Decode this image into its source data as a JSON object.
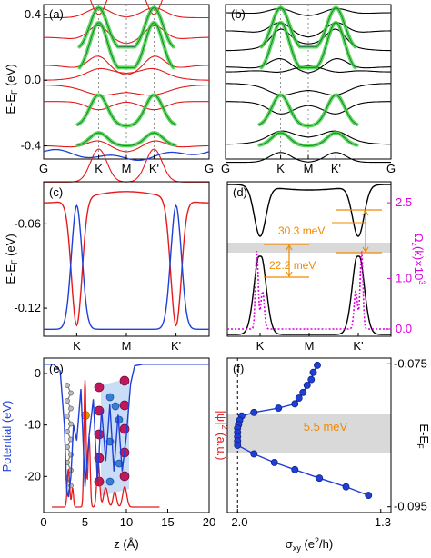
{
  "colors": {
    "red": "#e41a1c",
    "blue": "#1f3fd6",
    "green": "#3cd23c",
    "black": "#000000",
    "magenta": "#e000e0",
    "orange": "#f08a00",
    "gray_band": "#d9d9d9",
    "atom_purple": "#c0185c",
    "atom_blue": "#3a7dd8",
    "atom_gray": "#8c8c8c",
    "sheet_blue": "#9cc3ee"
  },
  "chart_data": [
    {
      "panel": "(a)",
      "type": "line",
      "title": "",
      "ylabel": "E-E_F (eV)",
      "xlabel": "",
      "xticks": [
        {
          "x": 0.0,
          "label": "G"
        },
        {
          "x": 0.333,
          "label": "K"
        },
        {
          "x": 0.5,
          "label": "M"
        },
        {
          "x": 0.667,
          "label": "K'"
        },
        {
          "x": 1.0,
          "label": "G"
        }
      ],
      "ylim": [
        -0.48,
        0.46
      ],
      "yticks": [
        "0.4",
        "0.0",
        "-0.4"
      ],
      "yticks_values": [
        0.4,
        0.0,
        -0.4
      ],
      "series": [
        {
          "color": "red",
          "kind": "band_set",
          "description_values": [
            0.42,
            0.31,
            0.18,
            0.08,
            -0.07,
            -0.16,
            -0.28,
            -0.37
          ]
        },
        {
          "color": "green",
          "kind": "projected_bands",
          "valley_minima": [
            0.18,
            0.18
          ],
          "valley_maxima": [
            -0.28,
            -0.28
          ]
        },
        {
          "color": "blue",
          "kind": "band",
          "values_at_ends": [
            -0.46,
            -0.46
          ]
        }
      ]
    },
    {
      "panel": "(b)",
      "type": "line",
      "title": "",
      "xticks": [
        {
          "x": 0.0,
          "label": "G"
        },
        {
          "x": 0.333,
          "label": "K"
        },
        {
          "x": 0.5,
          "label": "M"
        },
        {
          "x": 0.667,
          "label": "K'"
        },
        {
          "x": 1.0,
          "label": "G"
        }
      ],
      "ylim": [
        -0.48,
        0.46
      ],
      "series": [
        {
          "color": "black",
          "kind": "band_set"
        },
        {
          "color": "green",
          "kind": "projected_bands"
        }
      ]
    },
    {
      "panel": "(c)",
      "type": "line",
      "title": "",
      "ylabel": "E-E_F (eV)",
      "xticks": [
        {
          "x": 0.2,
          "label": "K"
        },
        {
          "x": 0.5,
          "label": "M"
        },
        {
          "x": 0.8,
          "label": "K'"
        }
      ],
      "yticks": [
        "-0.06",
        "-0.12"
      ],
      "yticks_values": [
        -0.06,
        -0.12
      ],
      "ylim": [
        -0.14,
        -0.03
      ],
      "series": [
        {
          "color": "red",
          "kind": "band"
        },
        {
          "color": "blue",
          "kind": "band"
        }
      ]
    },
    {
      "panel": "(d)",
      "type": "line",
      "title": "",
      "y2label": "Ω_z(k)×10^3",
      "xticks": [
        {
          "x": 0.2,
          "label": "K"
        },
        {
          "x": 0.5,
          "label": "M"
        },
        {
          "x": 0.8,
          "label": "K'"
        }
      ],
      "y2ticks": [
        "2.5",
        "1.0",
        "0.0"
      ],
      "y2ticks_values": [
        2.5,
        1.0,
        0.0
      ],
      "annotations": [
        "30.3 meV",
        "22.2 meV"
      ],
      "series": [
        {
          "color": "black",
          "kind": "band"
        },
        {
          "color": "magenta",
          "kind": "berry_curvature",
          "style": "dotted"
        }
      ]
    },
    {
      "panel": "(e)",
      "type": "line",
      "title": "",
      "xlabel": "z (Å)",
      "ylabel": "Potential (eV)",
      "y2label": "|ψ|^2 (a.u.)",
      "xlim": [
        0,
        20
      ],
      "xticks": [
        "0",
        "5",
        "10",
        "15",
        "20"
      ],
      "xticks_values": [
        0,
        5,
        10,
        15,
        20
      ],
      "ylim": [
        -27,
        3
      ],
      "yticks": [
        "0",
        "-10",
        "-20"
      ],
      "yticks_values": [
        0,
        -10,
        -20
      ],
      "series": [
        {
          "color": "blue",
          "kind": "potential",
          "x": [
            0,
            1.2,
            2.0,
            2.5,
            2.8,
            3.0,
            3.3,
            3.6,
            4.0,
            4.5,
            5.0,
            5.5,
            6.0,
            6.5,
            7.0,
            7.5,
            8.0,
            8.5,
            9.0,
            9.5,
            10.0,
            10.5,
            11.0,
            12.0,
            20.0
          ],
          "y": [
            1.8,
            1.8,
            0.5,
            -10,
            -23,
            -24,
            -20,
            -10,
            -13,
            -3,
            -22,
            -12,
            -5,
            -21,
            -7,
            -17,
            -6,
            -19,
            -8,
            -19,
            -12,
            -2,
            1.5,
            1.8,
            1.8
          ]
        }
      ]
    },
    {
      "panel": "(f)",
      "type": "scatter",
      "title": "",
      "xlabel": "σ_xy (e^2/h)",
      "y2label": "E-E_F",
      "xlim": [
        -2.05,
        -1.25
      ],
      "xticks": [
        "-2.0",
        "-1.3"
      ],
      "xticks_values": [
        -2.0,
        -1.3
      ],
      "ylim": [
        -0.0958,
        -0.0742
      ],
      "y2ticks": [
        "-0.075",
        "-0.095"
      ],
      "y2ticks_values": [
        -0.075,
        -0.095
      ],
      "band_label": "5.5 meV",
      "band_range": [
        -0.0875,
        -0.082
      ],
      "series": [
        {
          "color": "blue",
          "x": [
            -1.61,
            -1.63,
            -1.64,
            -1.66,
            -1.68,
            -1.7,
            -1.72,
            -1.8,
            -1.92,
            -1.98,
            -1.99,
            -1.995,
            -2.0,
            -2.0,
            -2.0,
            -2.0,
            -2.0,
            -1.92,
            -1.82,
            -1.72,
            -1.6,
            -1.47,
            -1.36
          ],
          "y": [
            -0.0752,
            -0.0762,
            -0.0772,
            -0.078,
            -0.079,
            -0.0798,
            -0.0806,
            -0.0812,
            -0.0818,
            -0.0823,
            -0.0829,
            -0.0835,
            -0.084,
            -0.0846,
            -0.0852,
            -0.0858,
            -0.0864,
            -0.0876,
            -0.0888,
            -0.0898,
            -0.091,
            -0.0922,
            -0.0934
          ]
        }
      ]
    }
  ],
  "labels": {
    "a": "(a)",
    "b": "(b)",
    "c": "(c)",
    "d": "(d)",
    "e": "(e)",
    "f": "(f)",
    "ylabel_ab": "E-E",
    "ylabel_ab_sub": "F",
    "ylabel_ab_unit": " (eV)",
    "ylabel_c": "E-E",
    "ylabel_c_sub": "F",
    "ylabel_c_unit": " (eV)",
    "ylabel_e": "Potential (eV)",
    "y2label_e_pre": "|ψ|",
    "y2label_e_sup": "2",
    "y2label_e_post": " (a.u.)",
    "y2label_d_pre": "Ω",
    "y2label_d_sub": "z",
    "y2label_d_post": "(k)×10",
    "y2label_d_sup": "3",
    "xlabel_e": "z (Å)",
    "xlabel_f_pre": "σ",
    "xlabel_f_sub": "xy",
    "xlabel_f_post": " (e",
    "xlabel_f_sup": "2",
    "xlabel_f_end": "/h)",
    "ylabel_f_pre": "E-E",
    "ylabel_f_sub": "F",
    "ann_d1": "30.3 meV",
    "ann_d2": "22.2 meV",
    "ann_f": "5.5 meV"
  }
}
